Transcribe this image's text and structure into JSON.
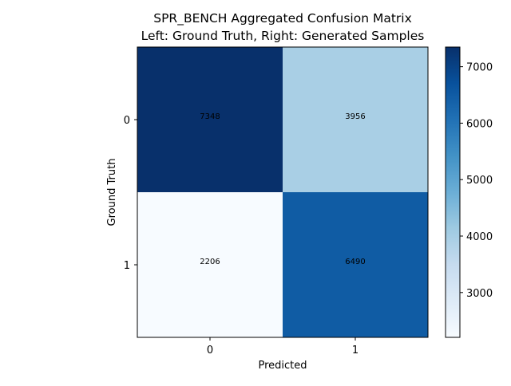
{
  "chart_data": {
    "type": "heatmap",
    "title_lines": [
      "SPR_BENCH Aggregated Confusion Matrix",
      "Left: Ground Truth, Right: Generated Samples"
    ],
    "xlabel": "Predicted",
    "ylabel": "Ground Truth",
    "x_categories": [
      "0",
      "1"
    ],
    "y_categories": [
      "0",
      "1"
    ],
    "matrix": [
      [
        7348,
        3956
      ],
      [
        2206,
        6490
      ]
    ],
    "colormap": "Blues",
    "color_range": [
      2206,
      7348
    ],
    "colorbar_ticks": [
      3000,
      4000,
      5000,
      6000,
      7000
    ],
    "colormap_stops": [
      "#f7fbff",
      "#deebf7",
      "#c6dbef",
      "#9ecae1",
      "#6baed6",
      "#4292c6",
      "#2171b5",
      "#08519c",
      "#08306b"
    ],
    "grid": false
  }
}
